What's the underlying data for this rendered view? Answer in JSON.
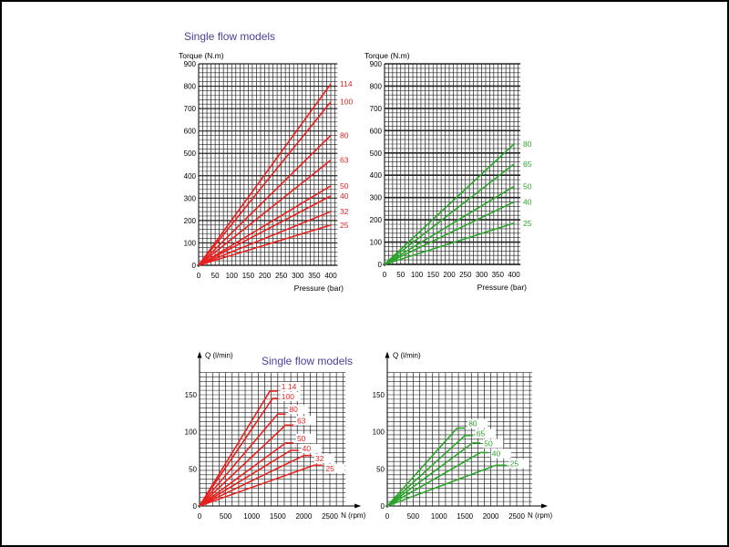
{
  "chart_data": [
    {
      "type": "line",
      "title": "Single flow models",
      "ylabel": "Torque (N.m)",
      "xlabel": "Pressure (bar)",
      "xlim": [
        0,
        400
      ],
      "ylim": [
        0,
        900
      ],
      "xticks": [
        0,
        50,
        100,
        150,
        200,
        250,
        300,
        350,
        400
      ],
      "yticks": [
        0,
        100,
        200,
        300,
        400,
        500,
        600,
        700,
        800,
        900
      ],
      "grid": true,
      "color": "#e8201e",
      "series": [
        {
          "name": "114",
          "x": [
            0,
            400
          ],
          "y": [
            0,
            810
          ]
        },
        {
          "name": "100",
          "x": [
            0,
            400
          ],
          "y": [
            0,
            730
          ]
        },
        {
          "name": "80",
          "x": [
            0,
            400
          ],
          "y": [
            0,
            580
          ]
        },
        {
          "name": "63",
          "x": [
            0,
            400
          ],
          "y": [
            0,
            470
          ]
        },
        {
          "name": "50",
          "x": [
            0,
            400
          ],
          "y": [
            0,
            355
          ]
        },
        {
          "name": "40",
          "x": [
            0,
            400
          ],
          "y": [
            0,
            310
          ]
        },
        {
          "name": "32",
          "x": [
            0,
            400
          ],
          "y": [
            0,
            240
          ]
        },
        {
          "name": "25",
          "x": [
            0,
            400
          ],
          "y": [
            0,
            180
          ]
        }
      ]
    },
    {
      "type": "line",
      "title": "",
      "ylabel": "Torque (N.m)",
      "xlabel": "Pressure (bar)",
      "xlim": [
        0,
        400
      ],
      "ylim": [
        0,
        900
      ],
      "xticks": [
        0,
        50,
        100,
        150,
        200,
        250,
        300,
        350,
        400
      ],
      "yticks": [
        0,
        100,
        200,
        300,
        400,
        500,
        600,
        700,
        800,
        900
      ],
      "grid": true,
      "color": "#2aa52a",
      "series": [
        {
          "name": "80",
          "x": [
            0,
            400
          ],
          "y": [
            0,
            540
          ]
        },
        {
          "name": "65",
          "x": [
            0,
            400
          ],
          "y": [
            0,
            450
          ]
        },
        {
          "name": "50",
          "x": [
            0,
            400
          ],
          "y": [
            0,
            350
          ]
        },
        {
          "name": "40",
          "x": [
            0,
            400
          ],
          "y": [
            0,
            280
          ]
        },
        {
          "name": "25",
          "x": [
            0,
            400
          ],
          "y": [
            0,
            185
          ]
        }
      ]
    },
    {
      "type": "line",
      "title": "Single flow models",
      "ylabel": "Q (l/min)",
      "xlabel": "N (rpm)",
      "xlim": [
        0,
        2800
      ],
      "ylim": [
        0,
        180
      ],
      "xticks": [
        0,
        500,
        1000,
        1500,
        2000,
        2500
      ],
      "yticks": [
        0,
        50,
        100,
        150
      ],
      "grid": true,
      "color": "#e8201e",
      "series": [
        {
          "name": "1 14",
          "x": [
            0,
            1350,
            1500
          ],
          "y": [
            0,
            155,
            155
          ]
        },
        {
          "name": "100",
          "x": [
            0,
            1400,
            1500
          ],
          "y": [
            0,
            145,
            145
          ]
        },
        {
          "name": "80",
          "x": [
            0,
            1500,
            1650
          ],
          "y": [
            0,
            124,
            124
          ]
        },
        {
          "name": "63",
          "x": [
            0,
            1650,
            1800
          ],
          "y": [
            0,
            109,
            109
          ]
        },
        {
          "name": "50",
          "x": [
            0,
            1650,
            1800
          ],
          "y": [
            0,
            85,
            85
          ]
        },
        {
          "name": "40",
          "x": [
            0,
            1750,
            1900
          ],
          "y": [
            0,
            75,
            75
          ]
        },
        {
          "name": "32",
          "x": [
            0,
            2000,
            2150
          ],
          "y": [
            0,
            68,
            68
          ]
        },
        {
          "name": "25",
          "x": [
            0,
            2200,
            2350
          ],
          "y": [
            0,
            55,
            55
          ]
        }
      ]
    },
    {
      "type": "line",
      "title": "",
      "ylabel": "Q (l/min)",
      "xlabel": "N (rpm)",
      "xlim": [
        0,
        2800
      ],
      "ylim": [
        0,
        180
      ],
      "xticks": [
        0,
        500,
        1000,
        1500,
        2000,
        2500
      ],
      "yticks": [
        0,
        50,
        100,
        150
      ],
      "grid": true,
      "color": "#2aa52a",
      "series": [
        {
          "name": "80",
          "x": [
            0,
            1350,
            1500
          ],
          "y": [
            0,
            105,
            105
          ]
        },
        {
          "name": "65",
          "x": [
            0,
            1500,
            1650
          ],
          "y": [
            0,
            95,
            95
          ]
        },
        {
          "name": "50",
          "x": [
            0,
            1650,
            1800
          ],
          "y": [
            0,
            85,
            85
          ]
        },
        {
          "name": "40",
          "x": [
            0,
            1800,
            1950
          ],
          "y": [
            0,
            72,
            72
          ]
        },
        {
          "name": "25",
          "x": [
            0,
            2100,
            2300
          ],
          "y": [
            0,
            55,
            55
          ]
        }
      ]
    }
  ],
  "title_color": "#4a3f9a"
}
